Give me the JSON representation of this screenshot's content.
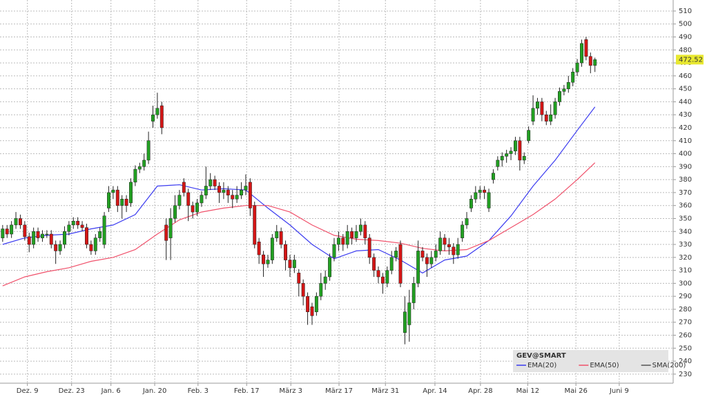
{
  "chart_data": {
    "type": "candlestick",
    "symbol": "GEV@SMART",
    "up_color": "#22a022",
    "down_color": "#d41616",
    "xlim": [
      -0.6,
      151.7
    ],
    "ylim": [
      223,
      518.5
    ],
    "yticks": [
      230,
      240,
      250,
      260,
      270,
      280,
      290,
      300,
      310,
      320,
      330,
      340,
      350,
      360,
      370,
      380,
      390,
      400,
      410,
      420,
      430,
      440,
      450,
      460,
      470,
      480,
      490,
      500,
      510
    ],
    "xticks": [
      {
        "value": 5.6,
        "label": "Dez. 9"
      },
      {
        "value": 15.6,
        "label": "Dez. 23"
      },
      {
        "value": 24.5,
        "label": "Jan. 6"
      },
      {
        "value": 34.4,
        "label": "Jan. 20"
      },
      {
        "value": 44.2,
        "label": "Feb. 3"
      },
      {
        "value": 55.2,
        "label": "Feb. 17"
      },
      {
        "value": 65.2,
        "label": "März 3"
      },
      {
        "value": 76.1,
        "label": "März 17"
      },
      {
        "value": 86.6,
        "label": "März 31"
      },
      {
        "value": 97.8,
        "label": "Apr. 14"
      },
      {
        "value": 108.1,
        "label": "Apr. 28"
      },
      {
        "value": 118.8,
        "label": "Mai 12"
      },
      {
        "value": 129.7,
        "label": "Mai 26"
      },
      {
        "value": 139.5,
        "label": "Juni 9"
      }
    ],
    "grid": true,
    "open": [
      335,
      342,
      338,
      345,
      350,
      345,
      336,
      330,
      340,
      335,
      338,
      338,
      330,
      325,
      330,
      340,
      345,
      348,
      345,
      343,
      330,
      325,
      335,
      330,
      358,
      370,
      372,
      360,
      365,
      362,
      378,
      388,
      390,
      395,
      425,
      430,
      437,
      345,
      335,
      350,
      360,
      378,
      370,
      360,
      355,
      362,
      368,
      375,
      380,
      375,
      370,
      372,
      368,
      365,
      368,
      372,
      378,
      360,
      332,
      322,
      315,
      318,
      335,
      340,
      330,
      318,
      312,
      308,
      300,
      290,
      282,
      278,
      290,
      300,
      305,
      320,
      330,
      335,
      330,
      340,
      335,
      340,
      345,
      335,
      320,
      310,
      305,
      300,
      310,
      320,
      330,
      262,
      268,
      285,
      300,
      325,
      320,
      315,
      320,
      325,
      335,
      330,
      328,
      322,
      335,
      345,
      358,
      365,
      370,
      372,
      358,
      380,
      390,
      395,
      398,
      400,
      402,
      410,
      395,
      410,
      425,
      435,
      440,
      430,
      425,
      430,
      440,
      448,
      450,
      455,
      463,
      470,
      488,
      475,
      468
    ],
    "high": [
      345,
      345,
      348,
      355,
      353,
      348,
      339,
      343,
      343,
      341,
      341,
      341,
      333,
      333,
      344,
      348,
      351,
      351,
      348,
      346,
      333,
      338,
      343,
      355,
      375,
      375,
      375,
      368,
      368,
      381,
      391,
      393,
      400,
      417,
      437,
      447,
      440,
      350,
      358,
      368,
      372,
      381,
      373,
      363,
      365,
      371,
      390,
      385,
      383,
      378,
      378,
      375,
      372,
      375,
      378,
      384,
      381,
      363,
      335,
      325,
      322,
      338,
      345,
      343,
      333,
      322,
      322,
      311,
      303,
      293,
      285,
      293,
      308,
      310,
      323,
      335,
      340,
      338,
      345,
      343,
      345,
      350,
      348,
      338,
      323,
      313,
      308,
      313,
      325,
      328,
      333,
      290,
      295,
      305,
      333,
      328,
      323,
      325,
      330,
      340,
      338,
      335,
      331,
      335,
      348,
      355,
      368,
      375,
      375,
      375,
      373,
      388,
      398,
      401,
      403,
      405,
      413,
      413,
      401,
      421,
      445,
      443,
      443,
      433,
      438,
      443,
      451,
      453,
      460,
      466,
      473,
      488,
      490,
      478,
      474
    ],
    "low": [
      332,
      335,
      335,
      342,
      342,
      333,
      324,
      327,
      332,
      332,
      335,
      327,
      315,
      322,
      327,
      337,
      342,
      342,
      340,
      327,
      322,
      322,
      332,
      327,
      355,
      365,
      355,
      350,
      355,
      359,
      375,
      385,
      387,
      392,
      420,
      427,
      415,
      318,
      318,
      347,
      357,
      367,
      348,
      350,
      352,
      359,
      365,
      372,
      372,
      362,
      365,
      362,
      358,
      362,
      365,
      368,
      352,
      327,
      315,
      305,
      312,
      315,
      332,
      327,
      310,
      305,
      308,
      290,
      283,
      268,
      268,
      275,
      287,
      295,
      302,
      317,
      325,
      325,
      327,
      330,
      332,
      337,
      330,
      315,
      305,
      300,
      292,
      297,
      307,
      317,
      297,
      253,
      255,
      280,
      297,
      317,
      305,
      312,
      317,
      322,
      325,
      322,
      315,
      319,
      332,
      342,
      355,
      362,
      365,
      365,
      355,
      377,
      387,
      390,
      393,
      395,
      399,
      387,
      392,
      408,
      422,
      430,
      425,
      422,
      422,
      427,
      437,
      445,
      447,
      452,
      460,
      467,
      472,
      462,
      463
    ],
    "close": [
      342,
      338,
      345,
      350,
      345,
      336,
      330,
      340,
      335,
      338,
      338,
      330,
      325,
      330,
      340,
      345,
      348,
      345,
      343,
      330,
      325,
      335,
      340,
      352,
      370,
      372,
      360,
      365,
      360,
      378,
      388,
      390,
      395,
      410,
      430,
      435,
      420,
      333,
      350,
      360,
      368,
      370,
      360,
      355,
      362,
      368,
      375,
      380,
      375,
      370,
      372,
      368,
      365,
      368,
      372,
      375,
      358,
      330,
      322,
      315,
      318,
      335,
      340,
      330,
      318,
      312,
      318,
      300,
      290,
      278,
      275,
      290,
      300,
      305,
      320,
      330,
      335,
      330,
      340,
      335,
      340,
      345,
      335,
      320,
      310,
      305,
      300,
      310,
      320,
      325,
      300,
      278,
      285,
      300,
      325,
      320,
      315,
      320,
      325,
      335,
      330,
      328,
      322,
      330,
      345,
      350,
      365,
      370,
      372,
      370,
      370,
      385,
      395,
      398,
      400,
      402,
      410,
      395,
      398,
      418,
      435,
      440,
      430,
      425,
      430,
      440,
      448,
      450,
      455,
      463,
      470,
      485,
      475,
      468,
      472.52
    ],
    "lines": [
      {
        "name": "EMA(20)",
        "color": "#3b3bf0",
        "x": [
          0,
          5,
          10,
          15,
          20,
          25,
          30,
          35,
          40,
          45,
          50,
          55,
          60,
          65,
          70,
          75,
          80,
          85,
          90,
          95,
          100,
          105,
          110,
          115,
          120,
          125,
          130,
          134
        ],
        "values": [
          330,
          335,
          337,
          338,
          342,
          345,
          353,
          375,
          376,
          372,
          373,
          372,
          358,
          345,
          330,
          319,
          325,
          326,
          318,
          308,
          318,
          321,
          333,
          352,
          375,
          395,
          418,
          436
        ]
      },
      {
        "name": "EMA(50)",
        "color": "#f0506a",
        "x": [
          0,
          5,
          10,
          15,
          20,
          25,
          30,
          35,
          40,
          45,
          50,
          55,
          60,
          65,
          70,
          75,
          80,
          85,
          90,
          95,
          100,
          105,
          110,
          115,
          120,
          125,
          130,
          134
        ],
        "values": [
          298,
          305,
          309,
          312,
          317,
          320,
          326,
          338,
          349,
          355,
          358,
          360,
          360,
          355,
          345,
          337,
          334,
          333,
          331,
          327,
          325,
          326,
          333,
          343,
          353,
          365,
          380,
          393
        ]
      },
      {
        "name": "SMA(200)",
        "color": "#555555"
      }
    ]
  }
}
